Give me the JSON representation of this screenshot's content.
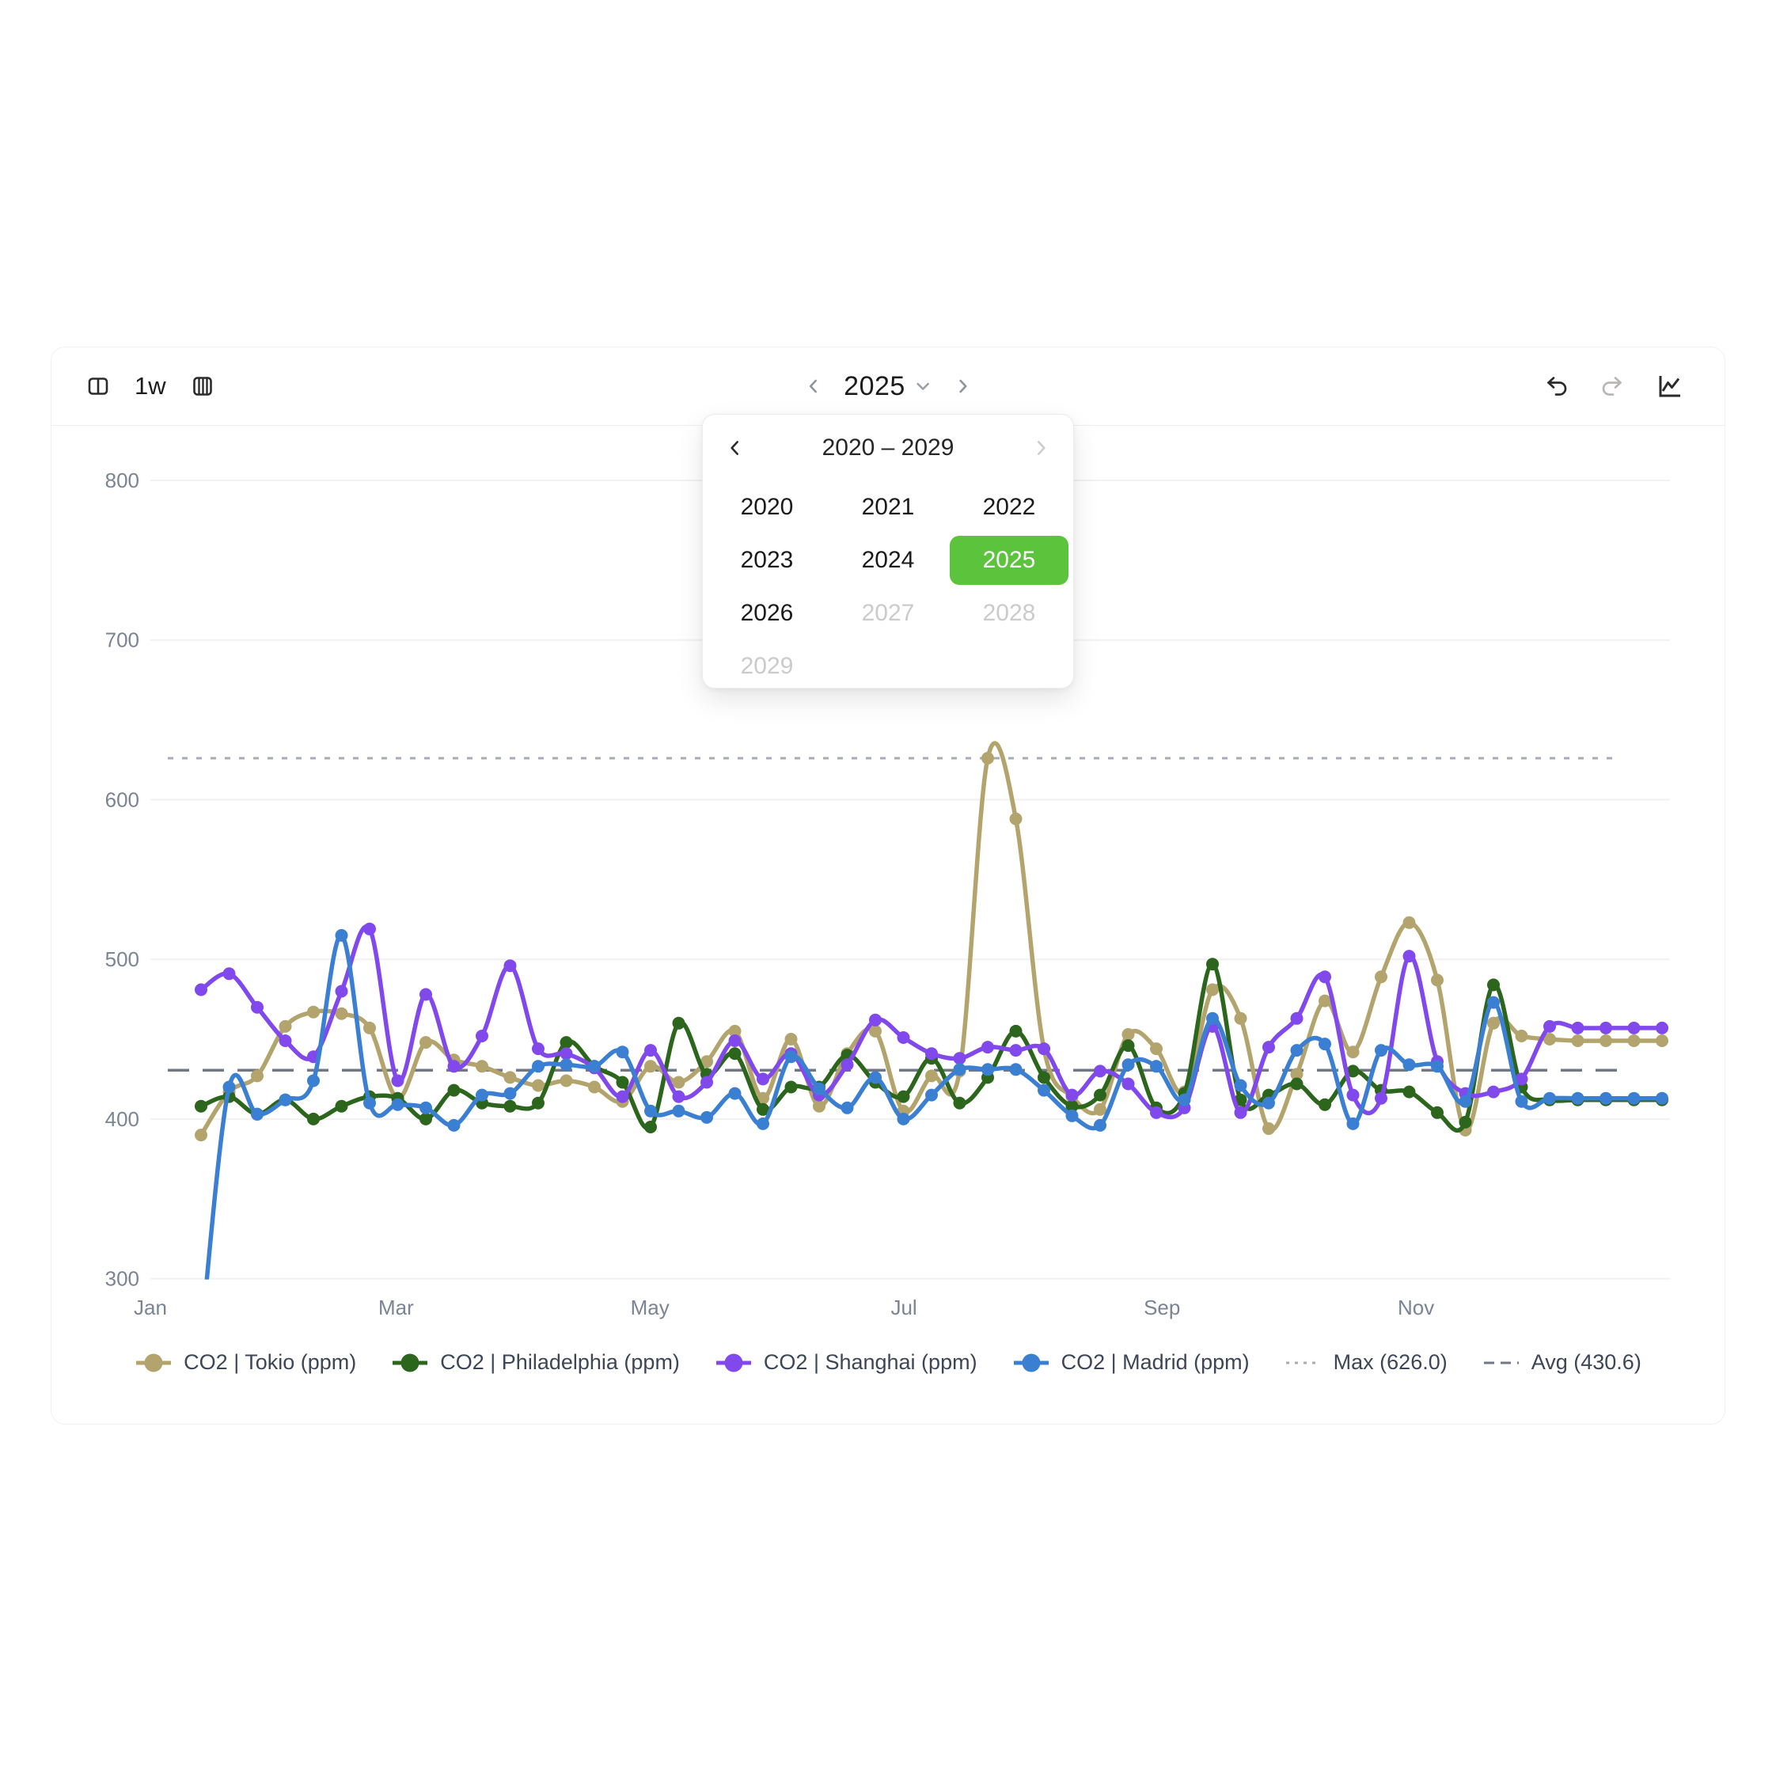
{
  "colors": {
    "accent_green": "#5bc43c",
    "icon_dark": "#2b2b2b",
    "icon_disabled": "#b9b6b3",
    "chevron_gray": "#8f959c",
    "axis_text": "#7b8492",
    "legend_text": "#3c4656",
    "gridline": "#f1f1f2",
    "max_line": "#a7abb3",
    "avg_line": "#6f7884"
  },
  "toolbar": {
    "left_icons": [
      "split-view-icon",
      "column-view-icon"
    ],
    "interval_label": "1w",
    "nav": {
      "prev": "chevron-left-icon",
      "year": "2025",
      "dropdown": "chevron-down-icon",
      "next": "chevron-right-icon"
    },
    "right_icons": [
      "undo-icon",
      "redo-icon",
      "line-chart-icon"
    ]
  },
  "popup": {
    "title": "2020 – 2029",
    "prev": "chevron-left-icon",
    "next": "chevron-right-icon",
    "years": [
      {
        "label": "2020",
        "state": "normal"
      },
      {
        "label": "2021",
        "state": "normal"
      },
      {
        "label": "2022",
        "state": "normal"
      },
      {
        "label": "2023",
        "state": "normal"
      },
      {
        "label": "2024",
        "state": "normal"
      },
      {
        "label": "2025",
        "state": "selected"
      },
      {
        "label": "2026",
        "state": "normal"
      },
      {
        "label": "2027",
        "state": "disabled"
      },
      {
        "label": "2028",
        "state": "disabled"
      },
      {
        "label": "2029",
        "state": "disabled"
      }
    ]
  },
  "chart_data": {
    "type": "line",
    "interval": "weekly",
    "ylim": [
      300,
      800
    ],
    "y_ticks": [
      300,
      400,
      500,
      600,
      700,
      800
    ],
    "x_ticks": [
      {
        "label": "Jan",
        "day": 0
      },
      {
        "label": "Mar",
        "day": 59
      },
      {
        "label": "May",
        "day": 120
      },
      {
        "label": "Jul",
        "day": 181
      },
      {
        "label": "Sep",
        "day": 243
      },
      {
        "label": "Nov",
        "day": 304
      }
    ],
    "grid": true,
    "legend_position": "bottom",
    "series": [
      {
        "name": "CO2 | Tokio (ppm)",
        "color": "#b2a46c",
        "values": [
          390,
          417,
          427,
          458,
          467,
          466,
          457,
          413,
          448,
          437,
          433,
          426,
          421,
          424,
          420,
          411,
          433,
          423,
          436,
          455,
          413,
          450,
          408,
          441,
          455,
          405,
          427,
          430,
          626,
          588,
          444,
          414,
          406,
          453,
          444,
          417,
          481,
          463,
          394,
          428,
          474,
          442,
          489,
          523,
          487,
          393,
          460,
          452,
          450,
          449,
          449,
          449,
          449
        ]
      },
      {
        "name": "CO2 | Philadelphia (ppm)",
        "color": "#2c661c",
        "values": [
          408,
          414,
          403,
          412,
          400,
          408,
          414,
          413,
          400,
          418,
          410,
          408,
          410,
          448,
          433,
          423,
          395,
          460,
          428,
          441,
          406,
          420,
          420,
          440,
          423,
          414,
          438,
          410,
          426,
          455,
          426,
          408,
          415,
          446,
          407,
          416,
          497,
          412,
          415,
          422,
          409,
          430,
          418,
          417,
          404,
          398,
          484,
          420,
          412,
          412,
          412,
          412,
          412
        ]
      },
      {
        "name": "CO2 | Shanghai (ppm)",
        "color": "#8148ec",
        "values": [
          481,
          491,
          470,
          449,
          439,
          480,
          519,
          424,
          478,
          433,
          452,
          496,
          444,
          441,
          432,
          414,
          443,
          414,
          423,
          449,
          425,
          441,
          415,
          434,
          462,
          451,
          441,
          438,
          445,
          443,
          444,
          415,
          430,
          422,
          404,
          407,
          458,
          404,
          445,
          463,
          489,
          415,
          413,
          502,
          436,
          416,
          417,
          425,
          458,
          457,
          457,
          457,
          457
        ]
      },
      {
        "name": "CO2 | Madrid (ppm)",
        "color": "#3b7fd2",
        "values": [
          262,
          420,
          403,
          412,
          424,
          515,
          410,
          409,
          407,
          396,
          415,
          416,
          433,
          434,
          433,
          442,
          405,
          405,
          401,
          416,
          397,
          439,
          419,
          407,
          426,
          400,
          415,
          431,
          431,
          431,
          418,
          402,
          396,
          434,
          433,
          412,
          463,
          421,
          410,
          443,
          447,
          397,
          443,
          434,
          433,
          411,
          473,
          411,
          413,
          413,
          413,
          413,
          413
        ]
      }
    ],
    "thresholds": [
      {
        "name": "Max",
        "value": 626.0,
        "style": "dotted",
        "color": "#a7abb3"
      },
      {
        "name": "Avg",
        "value": 430.6,
        "style": "dashed",
        "color": "#6f7884"
      }
    ]
  }
}
